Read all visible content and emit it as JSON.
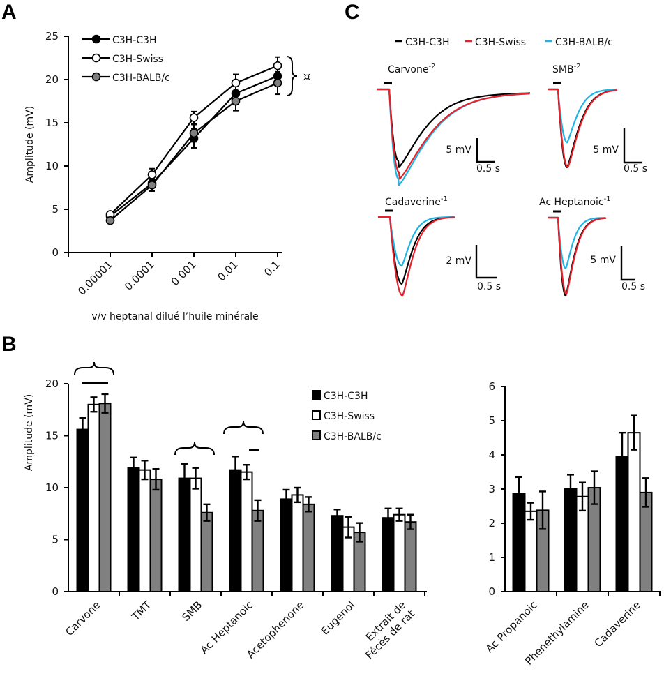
{
  "panels": {
    "a": "A",
    "b": "B",
    "c": "C"
  },
  "colors": {
    "c3h": "#000000",
    "swiss": "#ffffff",
    "balb": "#808080",
    "trace_c3h": "#000000",
    "trace_swiss": "#e8202a",
    "trace_balb": "#1eb4e6"
  },
  "chart_data": [
    {
      "id": "panel-a",
      "type": "line",
      "title": "",
      "xlabel": "v/v heptanal dilué l’huile minérale",
      "ylabel": "Amplitude (mV)",
      "ylim": [
        0,
        25
      ],
      "yticks": [
        0,
        5,
        10,
        15,
        20,
        25
      ],
      "categories": [
        "0.00001",
        "0.0001",
        "0.001",
        "0.01",
        "0.1"
      ],
      "legend": "top-left",
      "series": [
        {
          "name": "C3H-C3H",
          "marker": "filled-black",
          "values": [
            4.2,
            8.0,
            13.2,
            18.4,
            20.4
          ],
          "errors": [
            0.3,
            0.9,
            1.1,
            0.9,
            0.9
          ]
        },
        {
          "name": "C3H-Swiss",
          "marker": "open-white",
          "values": [
            4.4,
            9.0,
            15.6,
            19.6,
            21.6
          ],
          "errors": [
            0.3,
            0.7,
            0.7,
            1.0,
            1.0
          ]
        },
        {
          "name": "C3H-BALB/c",
          "marker": "filled-gray",
          "values": [
            3.7,
            7.8,
            13.8,
            17.5,
            19.6
          ],
          "errors": [
            0.3,
            0.7,
            1.0,
            1.1,
            1.3
          ]
        }
      ],
      "annotations": [
        {
          "type": "bracket",
          "text": "¤",
          "at": "0.1"
        }
      ]
    },
    {
      "id": "panel-b-left",
      "type": "bar",
      "title": "",
      "xlabel": "",
      "ylabel": "Amplitude (mV)",
      "ylim": [
        0,
        20
      ],
      "yticks": [
        0,
        5,
        10,
        15,
        20
      ],
      "categories": [
        "Carvone",
        "TMT",
        "SMB",
        "Ac Heptanoic",
        "Acetophenone",
        "Eugenol",
        "Extrait de|Fécès de rat"
      ],
      "legend": "top-right",
      "series": [
        {
          "name": "C3H-C3H",
          "values": [
            15.6,
            11.9,
            10.9,
            11.7,
            8.9,
            7.3,
            7.1
          ],
          "errors": [
            1.1,
            1.0,
            1.4,
            1.3,
            0.9,
            0.6,
            0.9
          ]
        },
        {
          "name": "C3H-Swiss",
          "values": [
            18.0,
            11.7,
            10.9,
            11.5,
            9.3,
            6.2,
            7.4
          ],
          "errors": [
            0.7,
            0.9,
            1.0,
            0.7,
            0.7,
            1.0,
            0.6
          ]
        },
        {
          "name": "C3H-BALB/c",
          "values": [
            18.1,
            10.8,
            7.6,
            7.8,
            8.4,
            5.7,
            6.7
          ],
          "errors": [
            0.9,
            1.0,
            0.8,
            1.0,
            0.7,
            0.9,
            0.7
          ]
        }
      ],
      "annotations": [
        {
          "category": "Carvone",
          "bracket": "##",
          "line": "**"
        },
        {
          "category": "SMB",
          "bracket": "#"
        },
        {
          "category": "Ac Heptanoic",
          "bracket": "#",
          "line": "*"
        }
      ]
    },
    {
      "id": "panel-b-right",
      "type": "bar",
      "title": "",
      "xlabel": "",
      "ylabel": "",
      "ylim": [
        0,
        6
      ],
      "yticks": [
        0,
        1,
        2,
        3,
        4,
        5,
        6
      ],
      "categories": [
        "Ac Propanoic",
        "Phenethylamine",
        "Cadaverine"
      ],
      "series": [
        {
          "name": "C3H-C3H",
          "values": [
            2.87,
            3.0,
            3.95
          ],
          "errors": [
            0.48,
            0.42,
            0.7
          ]
        },
        {
          "name": "C3H-Swiss",
          "values": [
            2.35,
            2.78,
            4.65
          ],
          "errors": [
            0.25,
            0.41,
            0.5
          ]
        },
        {
          "name": "C3H-BALB/c",
          "values": [
            2.38,
            3.04,
            2.9
          ],
          "errors": [
            0.55,
            0.48,
            0.42
          ]
        }
      ]
    },
    {
      "id": "panel-c",
      "type": "line",
      "title": "",
      "legend": "top",
      "series_names": [
        "C3H-C3H",
        "C3H-Swiss",
        "C3H-BALB/c"
      ],
      "traces": [
        {
          "label": "Carvone",
          "sup": "-2",
          "scale_v": "5 mV",
          "scale_t": "0.5 s",
          "peaks": {
            "C3H-C3H": 0.8,
            "C3H-Swiss": 0.93,
            "C3H-BALB/c": 1.0
          },
          "decay": "slow"
        },
        {
          "label": "SMB",
          "sup": "-2",
          "scale_v": "5 mV",
          "scale_t": "0.5 s",
          "peaks": {
            "C3H-C3H": 1.0,
            "C3H-Swiss": 1.0,
            "C3H-BALB/c": 0.68
          },
          "decay": "medium"
        },
        {
          "label": "Cadaverine",
          "sup": "-1",
          "scale_v": "2 mV",
          "scale_t": "0.5 s",
          "peaks": {
            "C3H-C3H": 0.85,
            "C3H-Swiss": 1.0,
            "C3H-BALB/c": 0.62
          },
          "decay": "fast"
        },
        {
          "label": "Ac Heptanoic",
          "sup": "-1",
          "scale_v": "5 mV",
          "scale_t": "0.5 s",
          "peaks": {
            "C3H-C3H": 1.0,
            "C3H-Swiss": 0.98,
            "C3H-BALB/c": 0.65
          },
          "decay": "fast"
        }
      ]
    }
  ]
}
